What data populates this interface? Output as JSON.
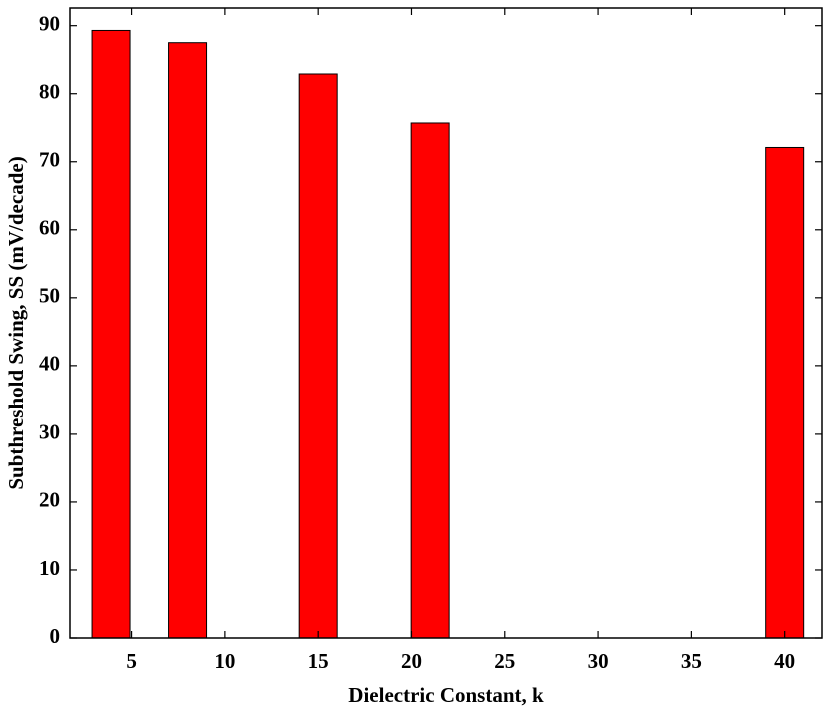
{
  "chart_data": {
    "type": "bar",
    "xlabel": "Dielectric Constant, k",
    "ylabel": "Subthreshold Swing, SS (mV/decade)",
    "x": [
      3.9,
      8,
      15,
      21,
      40
    ],
    "values": [
      89.3,
      87.5,
      82.9,
      75.7,
      72.1
    ],
    "color": "#ff0000",
    "xlim": [
      1.7,
      42
    ],
    "xticks": [
      5,
      10,
      15,
      20,
      25,
      30,
      35,
      40
    ],
    "ylim": [
      0,
      92.6
    ],
    "yticks": [
      0,
      10,
      20,
      30,
      40,
      50,
      60,
      70,
      80,
      90
    ],
    "grid": false
  }
}
